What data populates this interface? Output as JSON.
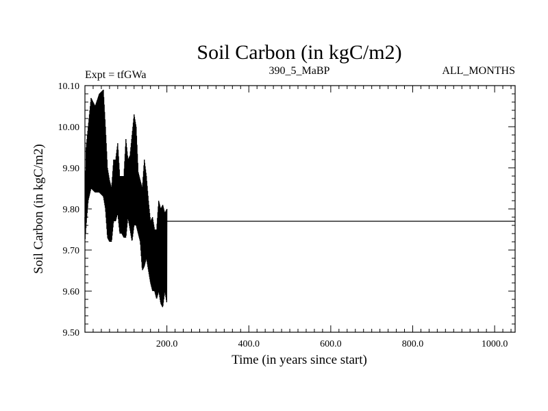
{
  "chart_data": {
    "type": "line",
    "title": "Soil Carbon (in kgC/m2)",
    "subtitle_left": "Expt = tfGWa",
    "subtitle_center": "390_5_MaBP",
    "subtitle_right": "ALL_MONTHS",
    "xlabel": "Time (in years since start)",
    "ylabel": "Soil Carbon (in kgC/m2)",
    "xlim": [
      0,
      1050
    ],
    "ylim": [
      9.5,
      10.1
    ],
    "x_ticks": [
      200,
      400,
      600,
      800,
      1000
    ],
    "x_tick_labels": [
      "200.0",
      "400.0",
      "600.0",
      "800.0",
      "1000.0"
    ],
    "y_ticks": [
      9.5,
      9.6,
      9.7,
      9.8,
      9.9,
      10.0,
      10.1
    ],
    "y_tick_labels": [
      "9.50",
      "9.60",
      "9.70",
      "9.80",
      "9.90",
      "10.00",
      "10.10"
    ],
    "grid": false,
    "series": [
      {
        "color": "#000000",
        "oscillating_band": {
          "x_step": 1,
          "envelope_x": [
            0,
            3,
            8,
            15,
            25,
            35,
            45,
            50,
            55,
            60,
            65,
            70,
            75,
            80,
            85,
            90,
            95,
            100,
            105,
            110,
            115,
            120,
            125,
            130,
            135,
            140,
            145,
            150,
            155,
            160,
            165,
            170,
            175,
            180,
            185,
            190,
            195,
            200
          ],
          "upper": [
            9.78,
            9.95,
            10.0,
            10.07,
            10.05,
            10.08,
            10.09,
            10.0,
            9.9,
            9.87,
            9.85,
            9.92,
            9.92,
            9.96,
            9.88,
            9.88,
            9.88,
            9.97,
            9.92,
            9.93,
            9.98,
            10.03,
            10.0,
            9.89,
            9.87,
            9.85,
            9.92,
            9.88,
            9.82,
            9.77,
            9.78,
            9.75,
            9.75,
            9.82,
            9.8,
            9.81,
            9.79,
            9.8
          ],
          "lower": [
            9.72,
            9.76,
            9.82,
            9.85,
            9.84,
            9.84,
            9.83,
            9.8,
            9.73,
            9.72,
            9.72,
            9.77,
            9.77,
            9.79,
            9.74,
            9.74,
            9.73,
            9.73,
            9.78,
            9.75,
            9.72,
            9.76,
            9.76,
            9.74,
            9.72,
            9.65,
            9.66,
            9.68,
            9.65,
            9.62,
            9.6,
            9.6,
            9.58,
            9.6,
            9.57,
            9.56,
            9.6,
            9.57
          ]
        },
        "tail": {
          "x": [
            200,
            1050
          ],
          "y": [
            9.77,
            9.77
          ]
        }
      }
    ]
  }
}
